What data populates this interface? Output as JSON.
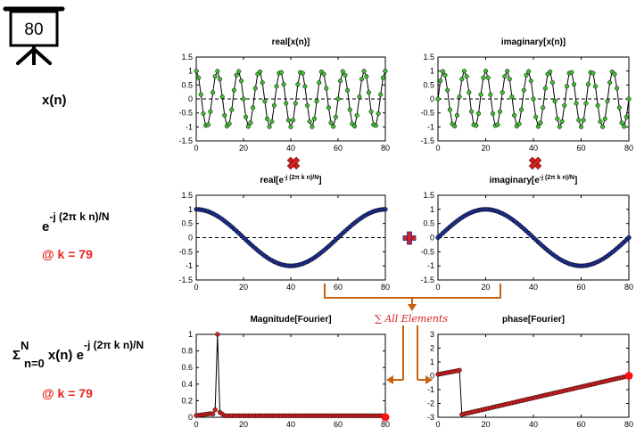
{
  "frame": {
    "number": "80"
  },
  "labels": {
    "row1": "x(n)",
    "row2_base": "e",
    "row2_exp": "-j (2π k n)/N",
    "row2_k": "@ k = 79",
    "row3_sigma": "Σ",
    "row3_sup": "N",
    "row3_sub": "n=0",
    "row3_mid": " x(n) e",
    "row3_exp": "-j (2π k n)/N",
    "row3_k": "@ k = 79",
    "sum_label": "∑ All Elements"
  },
  "colors": {
    "green_marker": "#3fbf2f",
    "blue_marker": "#1f2f8f",
    "red_marker": "#d42020",
    "accent_red": "#e8231f",
    "arrow_orange": "#c8620f"
  },
  "chart_data": [
    {
      "type": "line",
      "title": "real[x(n)]",
      "title_sup": "",
      "title_tail": "",
      "xlim": [
        0,
        80
      ],
      "ylim": [
        -1.5,
        1.5
      ],
      "xticks": [
        "0",
        "20",
        "40",
        "60",
        "80"
      ],
      "yticks": [
        "1.5",
        "1",
        "0.5",
        "0",
        "-0.5",
        "-1",
        "-1.5"
      ],
      "series": [
        {
          "function": "cos(2*pi*9*n/80)",
          "n_range": [
            0,
            80
          ],
          "marker": "green"
        }
      ]
    },
    {
      "type": "line",
      "title": "imaginary[x(n)]",
      "title_sup": "",
      "title_tail": "",
      "xlim": [
        0,
        80
      ],
      "ylim": [
        -1.5,
        1.5
      ],
      "xticks": [
        "0",
        "20",
        "40",
        "60",
        "80"
      ],
      "yticks": [
        "1.5",
        "1",
        "0.5",
        "0",
        "-0.5",
        "-1",
        "-1.5"
      ],
      "series": [
        {
          "function": "sin(2*pi*9*n/80)",
          "n_range": [
            0,
            80
          ],
          "marker": "green"
        }
      ]
    },
    {
      "type": "line",
      "title": "real[e",
      "title_sup": "-j (2π k n)/N",
      "title_tail": "]",
      "xlim": [
        0,
        80
      ],
      "ylim": [
        -1.5,
        1.5
      ],
      "xticks": [
        "0",
        "20",
        "40",
        "60",
        "80"
      ],
      "yticks": [
        "1.5",
        "1",
        "0.5",
        "0",
        "-0.5",
        "-1",
        "-1.5"
      ],
      "series": [
        {
          "function": "cos(2*pi*n/80)",
          "n_range": [
            0,
            80
          ],
          "marker": "blue"
        }
      ]
    },
    {
      "type": "line",
      "title": "imaginary[e",
      "title_sup": "-j (2π k n)/N",
      "title_tail": "]",
      "xlim": [
        0,
        80
      ],
      "ylim": [
        -1.5,
        1.5
      ],
      "xticks": [
        "0",
        "20",
        "40",
        "60",
        "80"
      ],
      "yticks": [
        "1.5",
        "1",
        "0.5",
        "0",
        "-0.5",
        "-1",
        "-1.5"
      ],
      "series": [
        {
          "function": "sin(2*pi*n/80)",
          "n_range": [
            0,
            80
          ],
          "marker": "blue"
        }
      ]
    },
    {
      "type": "line",
      "title": "Magnitude[Fourier]",
      "title_sup": "",
      "title_tail": "",
      "xlim": [
        0,
        80
      ],
      "ylim": [
        0,
        1
      ],
      "xticks": [
        "0",
        "20",
        "40",
        "60",
        "80"
      ],
      "yticks": [
        "1",
        "0.8",
        "0.6",
        "0.4",
        "0.2",
        "0"
      ],
      "series": [
        {
          "function": "magnitude spectrum, peak 1.0 at n=9, near 0 elsewhere",
          "n_range": [
            0,
            79
          ],
          "marker": "red",
          "endpoint": [
            80,
            0
          ]
        }
      ]
    },
    {
      "type": "line",
      "title": "phase[Fourier]",
      "title_sup": "",
      "title_tail": "",
      "xlim": [
        0,
        80
      ],
      "ylim": [
        -3,
        3
      ],
      "xticks": [
        "0",
        "20",
        "40",
        "60",
        "80"
      ],
      "yticks": [
        "3",
        "2",
        "1",
        "0",
        "-1",
        "-2",
        "-3"
      ],
      "series": [
        {
          "function": "linear phase: 0.1 to 0.4 over n=0..9, jump to -2.8 at n=10, rising to 0 at n=80",
          "n_range": [
            0,
            79
          ],
          "marker": "red",
          "endpoint": [
            80,
            0
          ]
        }
      ]
    }
  ]
}
